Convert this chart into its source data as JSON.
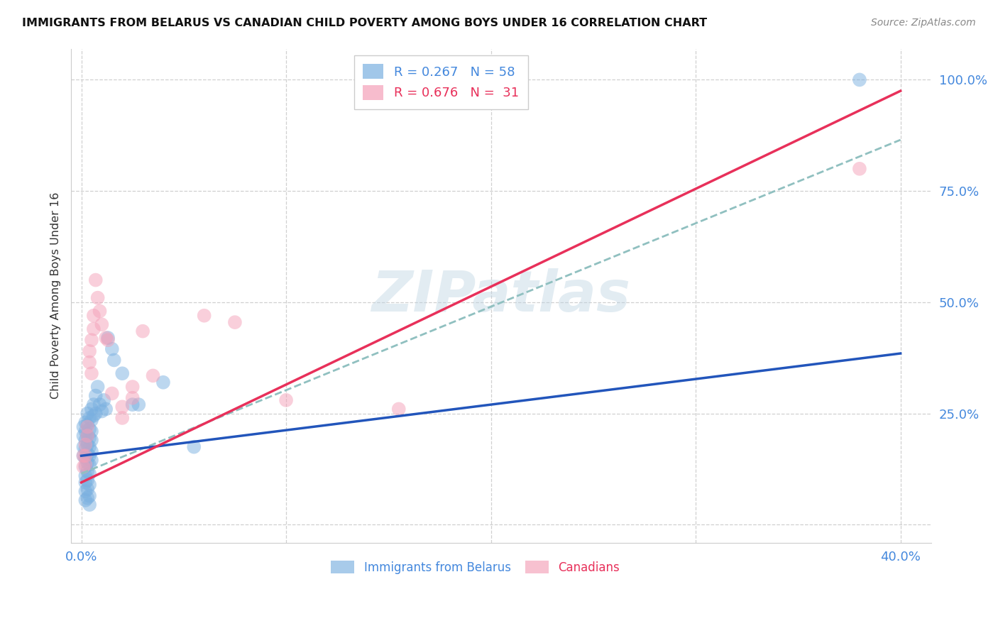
{
  "title": "IMMIGRANTS FROM BELARUS VS CANADIAN CHILD POVERTY AMONG BOYS UNDER 16 CORRELATION CHART",
  "source": "Source: ZipAtlas.com",
  "ylabel_label": "Child Poverty Among Boys Under 16",
  "x_ticks": [
    0.0,
    0.1,
    0.2,
    0.3,
    0.4
  ],
  "x_tick_labels": [
    "0.0%",
    "",
    "",
    "",
    "40.0%"
  ],
  "y_ticks": [
    0.0,
    0.25,
    0.5,
    0.75,
    1.0
  ],
  "y_tick_labels": [
    "",
    "25.0%",
    "50.0%",
    "75.0%",
    "100.0%"
  ],
  "xlim": [
    -0.005,
    0.415
  ],
  "ylim": [
    -0.04,
    1.07
  ],
  "watermark": "ZIPatlas",
  "blue_color": "#7ab0e0",
  "pink_color": "#f4a0b8",
  "blue_line_color": "#2255bb",
  "pink_line_color": "#e8305a",
  "dashed_line_color": "#90c0c0",
  "blue_scatter": [
    [
      0.001,
      0.22
    ],
    [
      0.001,
      0.2
    ],
    [
      0.001,
      0.175
    ],
    [
      0.001,
      0.155
    ],
    [
      0.002,
      0.23
    ],
    [
      0.002,
      0.21
    ],
    [
      0.002,
      0.19
    ],
    [
      0.002,
      0.17
    ],
    [
      0.002,
      0.15
    ],
    [
      0.002,
      0.13
    ],
    [
      0.002,
      0.11
    ],
    [
      0.002,
      0.095
    ],
    [
      0.002,
      0.075
    ],
    [
      0.002,
      0.055
    ],
    [
      0.003,
      0.25
    ],
    [
      0.003,
      0.225
    ],
    [
      0.003,
      0.2
    ],
    [
      0.003,
      0.18
    ],
    [
      0.003,
      0.16
    ],
    [
      0.003,
      0.14
    ],
    [
      0.003,
      0.12
    ],
    [
      0.003,
      0.1
    ],
    [
      0.003,
      0.08
    ],
    [
      0.003,
      0.06
    ],
    [
      0.004,
      0.24
    ],
    [
      0.004,
      0.215
    ],
    [
      0.004,
      0.195
    ],
    [
      0.004,
      0.175
    ],
    [
      0.004,
      0.155
    ],
    [
      0.004,
      0.135
    ],
    [
      0.004,
      0.115
    ],
    [
      0.004,
      0.09
    ],
    [
      0.004,
      0.065
    ],
    [
      0.004,
      0.045
    ],
    [
      0.005,
      0.26
    ],
    [
      0.005,
      0.235
    ],
    [
      0.005,
      0.21
    ],
    [
      0.005,
      0.19
    ],
    [
      0.005,
      0.165
    ],
    [
      0.005,
      0.145
    ],
    [
      0.006,
      0.27
    ],
    [
      0.006,
      0.245
    ],
    [
      0.007,
      0.29
    ],
    [
      0.007,
      0.25
    ],
    [
      0.008,
      0.31
    ],
    [
      0.009,
      0.27
    ],
    [
      0.01,
      0.255
    ],
    [
      0.011,
      0.28
    ],
    [
      0.012,
      0.26
    ],
    [
      0.013,
      0.42
    ],
    [
      0.015,
      0.395
    ],
    [
      0.016,
      0.37
    ],
    [
      0.02,
      0.34
    ],
    [
      0.025,
      0.27
    ],
    [
      0.028,
      0.27
    ],
    [
      0.04,
      0.32
    ],
    [
      0.055,
      0.175
    ],
    [
      0.38,
      1.0
    ]
  ],
  "pink_scatter": [
    [
      0.001,
      0.155
    ],
    [
      0.001,
      0.13
    ],
    [
      0.002,
      0.18
    ],
    [
      0.002,
      0.155
    ],
    [
      0.002,
      0.135
    ],
    [
      0.003,
      0.22
    ],
    [
      0.003,
      0.2
    ],
    [
      0.004,
      0.39
    ],
    [
      0.004,
      0.365
    ],
    [
      0.005,
      0.34
    ],
    [
      0.005,
      0.415
    ],
    [
      0.006,
      0.47
    ],
    [
      0.006,
      0.44
    ],
    [
      0.007,
      0.55
    ],
    [
      0.008,
      0.51
    ],
    [
      0.009,
      0.48
    ],
    [
      0.01,
      0.45
    ],
    [
      0.012,
      0.42
    ],
    [
      0.013,
      0.415
    ],
    [
      0.015,
      0.295
    ],
    [
      0.02,
      0.265
    ],
    [
      0.02,
      0.24
    ],
    [
      0.025,
      0.31
    ],
    [
      0.025,
      0.285
    ],
    [
      0.03,
      0.435
    ],
    [
      0.035,
      0.335
    ],
    [
      0.06,
      0.47
    ],
    [
      0.075,
      0.455
    ],
    [
      0.1,
      0.28
    ],
    [
      0.155,
      0.26
    ],
    [
      0.38,
      0.8
    ]
  ],
  "blue_line_pts": [
    [
      0.0,
      0.155
    ],
    [
      0.4,
      0.385
    ]
  ],
  "pink_line_pts": [
    [
      0.0,
      0.095
    ],
    [
      0.4,
      0.975
    ]
  ],
  "dashed_line_pts": [
    [
      0.0,
      0.115
    ],
    [
      0.4,
      0.865
    ]
  ],
  "background_color": "#ffffff",
  "grid_color": "#d0d0d0",
  "tick_color": "#4488dd",
  "title_color": "#111111",
  "ylabel_color": "#333333",
  "source_color": "#888888"
}
